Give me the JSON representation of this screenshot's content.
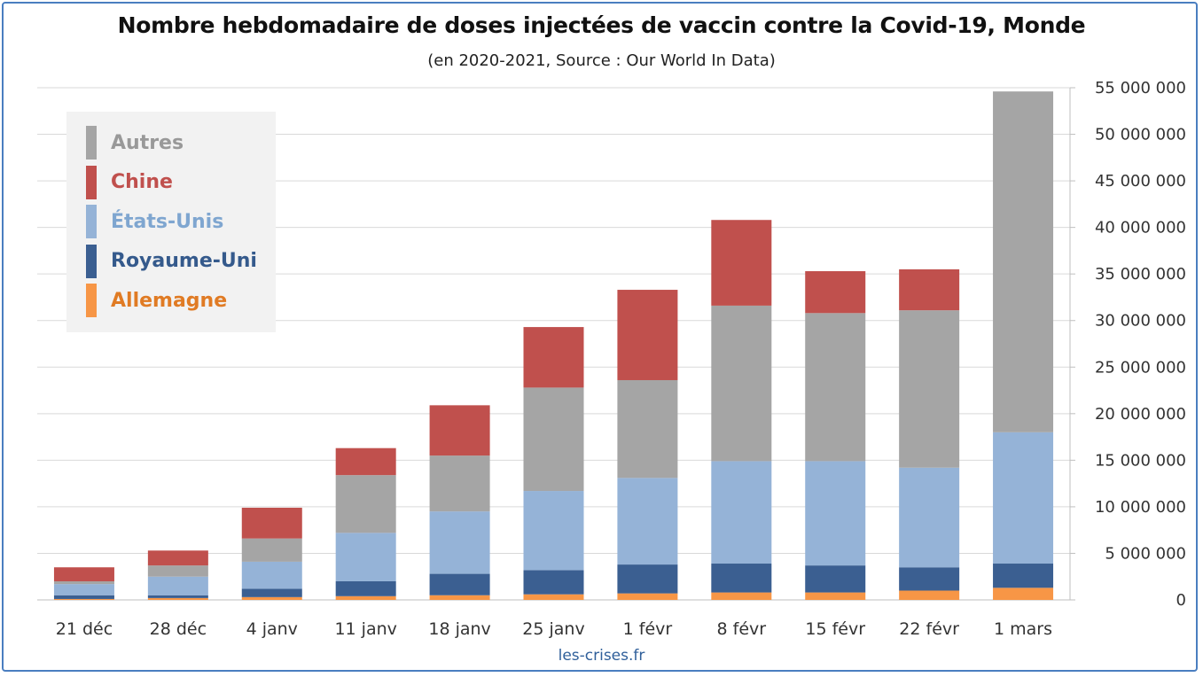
{
  "chart_data": {
    "type": "bar",
    "stacked": true,
    "title": "Nombre hebdomadaire de doses injectées de vaccin contre la Covid-19, Monde",
    "subtitle": "(en 2020-2021, Source : Our World In Data)",
    "source_label": "les-crises.fr",
    "categories": [
      "21 déc",
      "28 déc",
      "4 janv",
      "11 janv",
      "18 janv",
      "25 janv",
      "1 févr",
      "8 févr",
      "15 févr",
      "22 févr",
      "1 mars"
    ],
    "ylim": [
      0,
      55000000
    ],
    "yticks": [
      0,
      5000000,
      10000000,
      15000000,
      20000000,
      25000000,
      30000000,
      35000000,
      40000000,
      45000000,
      50000000,
      55000000
    ],
    "ytick_labels": [
      "0",
      "5 000 000",
      "10 000 000",
      "15 000 000",
      "20 000 000",
      "25 000 000",
      "30 000 000",
      "35 000 000",
      "40 000 000",
      "45 000 000",
      "50 000 000",
      "55 000 000"
    ],
    "grid": true,
    "y_axis_side": "right",
    "legend_position": "top-left",
    "series": [
      {
        "name": "Allemagne",
        "color": "#f79646",
        "values": [
          100000,
          200000,
          300000,
          400000,
          500000,
          600000,
          700000,
          800000,
          800000,
          1000000,
          1300000
        ]
      },
      {
        "name": "Royaume-Uni",
        "color": "#3b5f91",
        "values": [
          400000,
          300000,
          900000,
          1600000,
          2300000,
          2600000,
          3100000,
          3100000,
          2900000,
          2500000,
          2600000
        ]
      },
      {
        "name": "États-Unis",
        "color": "#95b3d7",
        "values": [
          1200000,
          2000000,
          2900000,
          5200000,
          6700000,
          8500000,
          9300000,
          11000000,
          11200000,
          10700000,
          14100000
        ]
      },
      {
        "name": "Autres",
        "color": "#a5a5a5",
        "values": [
          300000,
          1200000,
          2500000,
          6200000,
          6000000,
          11100000,
          10500000,
          16700000,
          15900000,
          16900000,
          36600000
        ]
      },
      {
        "name": "Chine",
        "color": "#c0504d",
        "values": [
          1500000,
          1600000,
          3300000,
          2900000,
          5400000,
          6500000,
          9700000,
          9200000,
          4500000,
          4400000,
          0
        ]
      }
    ]
  },
  "legend_order": [
    "Autres",
    "Chine",
    "États-Unis",
    "Royaume-Uni",
    "Allemagne"
  ],
  "legend_colors": {
    "Autres": {
      "swatch": "#a5a5a5",
      "text": "#999999"
    },
    "Chine": {
      "swatch": "#c0504d",
      "text": "#c0504d"
    },
    "États-Unis": {
      "swatch": "#95b3d7",
      "text": "#7fa6d0"
    },
    "Royaume-Uni": {
      "swatch": "#3b5f91",
      "text": "#355a8c"
    },
    "Allemagne": {
      "swatch": "#f79646",
      "text": "#e07b24"
    }
  },
  "colors": {
    "frame_border": "#4a7ec0",
    "grid": "#d9d9d9",
    "source": "#2f5f9a"
  }
}
